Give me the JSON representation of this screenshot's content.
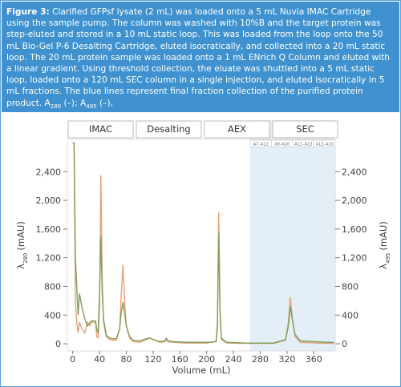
{
  "caption": {
    "label": "Figure 3:",
    "text": "Clarified GFPsf lysate (2 mL) was loaded onto a 5 mL Nuvia IMAC Cartridge using the sample pump. The column was washed with 10%B and the target protein was step-eluted and stored in a 10 mL static loop. This was loaded from the loop onto the 50 mL Bio-Gel P-6 Desalting Cartridge, eluted isocratically, and collected into a 20 mL static loop. The 20 mL protein sample was loaded onto a 1 mL ENrich Q Column and eluted with a linear gradient. Using threshold collection, the eluate was shuttled into a 5 mL static loop, loaded onto a 120 mL SEC column in a single injection, and eluted isocratically in 5 mL fractions. The blue lines represent final fraction collection of the purified protein product.",
    "legend": [
      {
        "symbol": "A",
        "sub": "280",
        "mark": "(–);",
        "color": "#e8a07a"
      },
      {
        "symbol": "A",
        "sub": "495",
        "mark": "(–),",
        "color": "#7da05a"
      }
    ]
  },
  "chart_data": {
    "type": "line",
    "phases": [
      "IMAC",
      "Desalting",
      "AEX",
      "SEC"
    ],
    "fractions": [
      "A7–A12",
      "A9–A10",
      "A11–A13",
      "A12–A10"
    ],
    "shaded_xrange": [
      265,
      392
    ],
    "shade_color": "#e3eef7",
    "x_label": "Volume (mL)",
    "y_label": {
      "symbol": "λ",
      "sub": "280",
      "unit": "(mAU)"
    },
    "y2_label": {
      "symbol": "λ",
      "sub": "495",
      "unit": "(mAU)"
    },
    "xlim": [
      -8,
      392
    ],
    "xticks": [
      0,
      40,
      80,
      120,
      160,
      200,
      240,
      280,
      320,
      360
    ],
    "ylim": [
      -100,
      2850
    ],
    "yticks": [
      0,
      400,
      800,
      {
        "value": 1200,
        "label": "1,200"
      },
      {
        "value": 1600,
        "label": "1,600"
      },
      {
        "value": 2000,
        "label": "2,000"
      },
      {
        "value": 2400,
        "label": "2,400"
      }
    ],
    "y2lim": [
      -100,
      2850
    ],
    "y2ticks": [
      0,
      400,
      800,
      {
        "value": 1200,
        "label": "1,200"
      },
      {
        "value": 1600,
        "label": "1,600"
      },
      {
        "value": 2000,
        "label": "2,000"
      },
      {
        "value": 2400,
        "label": "2,400"
      }
    ],
    "x": [
      0,
      2,
      4,
      6,
      8,
      10,
      14,
      18,
      22,
      26,
      28,
      30,
      34,
      36,
      38,
      40,
      42,
      44,
      46,
      50,
      55,
      60,
      65,
      70,
      72,
      75,
      78,
      80,
      85,
      90,
      100,
      110,
      115,
      120,
      130,
      138,
      140,
      142,
      150,
      170,
      200,
      214,
      216,
      218,
      220,
      222,
      230,
      260,
      300,
      318,
      322,
      325,
      328,
      332,
      340,
      380,
      390
    ],
    "series": [
      {
        "name": "A280",
        "color": "#e8a07a",
        "values": [
          2800,
          2800,
          600,
          300,
          150,
          300,
          200,
          150,
          300,
          250,
          300,
          300,
          300,
          100,
          80,
          500,
          2350,
          900,
          300,
          100,
          60,
          50,
          50,
          200,
          600,
          1100,
          500,
          250,
          80,
          30,
          20,
          60,
          80,
          60,
          20,
          30,
          60,
          30,
          20,
          10,
          10,
          30,
          300,
          1830,
          500,
          60,
          10,
          5,
          5,
          50,
          300,
          650,
          350,
          100,
          20,
          5,
          5
        ]
      },
      {
        "name": "A495",
        "color": "#7da05a",
        "axis": "y2",
        "values": [
          2800,
          2800,
          1200,
          800,
          400,
          700,
          500,
          350,
          250,
          300,
          320,
          320,
          320,
          200,
          150,
          700,
          1500,
          700,
          350,
          120,
          80,
          70,
          70,
          200,
          400,
          580,
          400,
          250,
          100,
          50,
          40,
          70,
          80,
          60,
          30,
          40,
          80,
          40,
          30,
          20,
          20,
          30,
          200,
          1550,
          400,
          80,
          20,
          10,
          10,
          60,
          250,
          520,
          330,
          130,
          40,
          20,
          20
        ]
      }
    ]
  }
}
